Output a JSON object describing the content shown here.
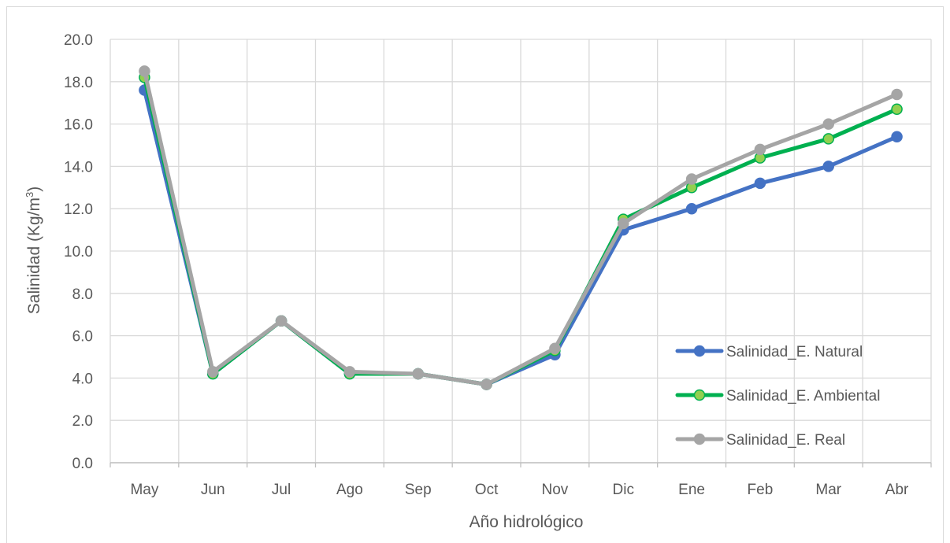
{
  "chart_data": {
    "type": "line",
    "title": "",
    "xlabel": "Año hidrológico",
    "ylabel": "Salinidad (Kg/m",
    "ylabel_sup": "3",
    "ylabel_end": ")",
    "ylim": [
      0,
      20
    ],
    "ytick_step": 2,
    "ytick_labels": [
      "0.0",
      "2.0",
      "4.0",
      "6.0",
      "8.0",
      "10.0",
      "12.0",
      "14.0",
      "16.0",
      "18.0",
      "20.0"
    ],
    "grid": true,
    "legend_position": "bottom-right",
    "categories": [
      "May",
      "Jun",
      "Jul",
      "Ago",
      "Sep",
      "Oct",
      "Nov",
      "Dic",
      "Ene",
      "Feb",
      "Mar",
      "Abr"
    ],
    "series": [
      {
        "name": "Salinidad_E. Natural",
        "color": "#4472c4",
        "marker_fill": "#4472c4",
        "values": [
          17.6,
          4.2,
          6.7,
          4.2,
          4.2,
          3.7,
          5.1,
          11.0,
          12.0,
          13.2,
          14.0,
          15.4
        ]
      },
      {
        "name": "Salinidad_E. Ambiental",
        "color": "#00b050",
        "marker_fill": "#92d050",
        "values": [
          18.2,
          4.2,
          6.7,
          4.2,
          4.2,
          3.7,
          5.3,
          11.5,
          13.0,
          14.4,
          15.3,
          16.7
        ]
      },
      {
        "name": "Salinidad_E. Real",
        "color": "#a5a5a5",
        "marker_fill": "#a5a5a5",
        "values": [
          18.5,
          4.3,
          6.7,
          4.3,
          4.2,
          3.7,
          5.4,
          11.3,
          13.4,
          14.8,
          16.0,
          17.4
        ]
      }
    ]
  }
}
